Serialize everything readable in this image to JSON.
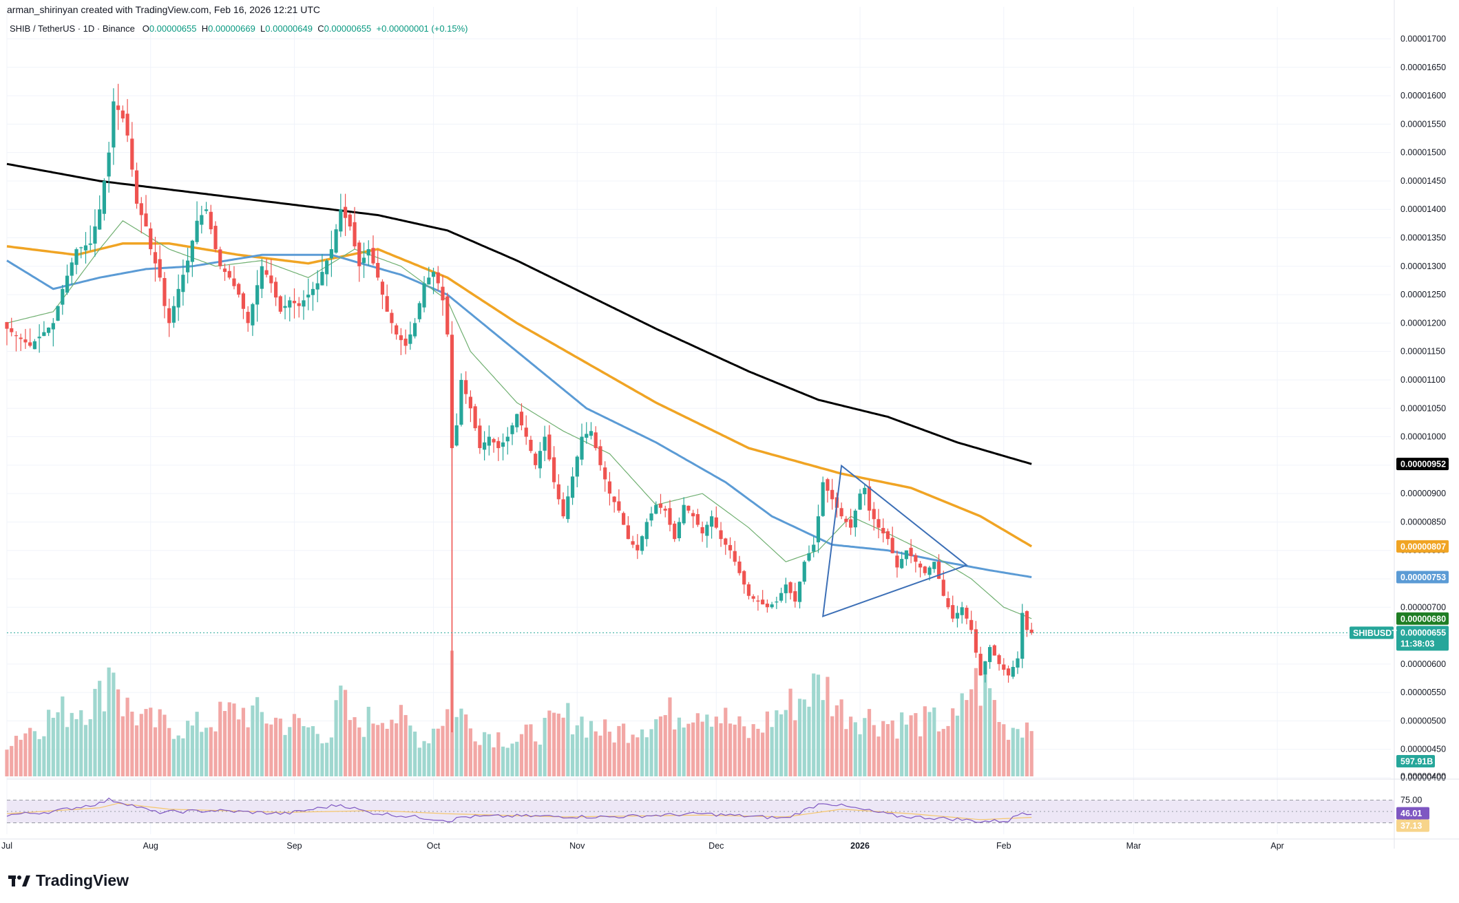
{
  "header": {
    "credit": "arman_shirinyan created with TradingView.com, Feb 16, 2026 12:21 UTC",
    "symbol_line": "SHIB / TetherUS · 1D · Binance",
    "ohlc": {
      "o_label": "O",
      "o": "0.00000655",
      "h_label": "H",
      "h": "0.00000669",
      "l_label": "L",
      "l": "0.00000649",
      "c_label": "C",
      "c": "0.00000655",
      "change": "+0.00000001 (+0.15%)"
    }
  },
  "brand": {
    "name": "TradingView",
    "logo_icon": "tradingview-logo-icon"
  },
  "colors": {
    "up": "#26a69a",
    "down": "#ef5350",
    "vol_up": "#9fd7cf",
    "vol_down": "#f2a7a5",
    "ma200": "#000000",
    "ma100": "#f0a424",
    "ma50": "#5b9bd5",
    "ma20": "#6faf70",
    "triangle": "#3c6fb6",
    "rsi": "#7e57c2",
    "rsi_ma": "#f5c66b",
    "rsi_band": "#ede7f6"
  },
  "chart_data": {
    "type": "candlestick",
    "symbol": "SHIB / TetherUS",
    "interval": "1D",
    "exchange": "Binance",
    "yaxis": {
      "ticks": [
        "0.00001700",
        "0.00001650",
        "0.00001600",
        "0.00001550",
        "0.00001500",
        "0.00001450",
        "0.00001400",
        "0.00001350",
        "0.00001300",
        "0.00001250",
        "0.00001200",
        "0.00001150",
        "0.00001100",
        "0.00001050",
        "0.00001000",
        "0.00000950",
        "0.00000900",
        "0.00000850",
        "0.00000800",
        "0.00000750",
        "0.00000700",
        "0.00000650",
        "0.00000600",
        "0.00000550",
        "0.00000500",
        "0.00000450",
        "0.00000400"
      ],
      "ylim": [
        4e-06,
        1.72e-05
      ],
      "position": "right"
    },
    "xaxis": {
      "labels": [
        {
          "label": "Jul",
          "day": 0
        },
        {
          "label": "Aug",
          "day": 31
        },
        {
          "label": "Sep",
          "day": 62
        },
        {
          "label": "Oct",
          "day": 92
        },
        {
          "label": "Nov",
          "day": 123
        },
        {
          "label": "Dec",
          "day": 153
        },
        {
          "label": "2026",
          "day": 184,
          "bold": true
        },
        {
          "label": "Feb",
          "day": 215
        },
        {
          "label": "Mar",
          "day": 243
        },
        {
          "label": "Apr",
          "day": 274
        }
      ]
    },
    "anchors": {
      "close": [
        [
          0,
          1.19
        ],
        [
          5,
          1.16
        ],
        [
          10,
          1.2
        ],
        [
          12,
          1.26
        ],
        [
          15,
          1.33
        ],
        [
          18,
          1.34
        ],
        [
          20,
          1.4
        ],
        [
          21,
          1.45
        ],
        [
          22,
          1.5
        ],
        [
          23,
          1.59
        ],
        [
          25,
          1.56
        ],
        [
          26,
          1.53
        ],
        [
          28,
          1.41
        ],
        [
          30,
          1.37
        ],
        [
          31,
          1.33
        ],
        [
          33,
          1.28
        ],
        [
          34,
          1.23
        ],
        [
          35,
          1.2
        ],
        [
          37,
          1.26
        ],
        [
          39,
          1.31
        ],
        [
          41,
          1.38
        ],
        [
          43,
          1.4
        ],
        [
          45,
          1.33
        ],
        [
          46,
          1.3
        ],
        [
          48,
          1.28
        ],
        [
          50,
          1.25
        ],
        [
          52,
          1.2
        ],
        [
          55,
          1.3
        ],
        [
          57,
          1.27
        ],
        [
          59,
          1.22
        ],
        [
          61,
          1.24
        ],
        [
          63,
          1.23
        ],
        [
          65,
          1.25
        ],
        [
          67,
          1.27
        ],
        [
          70,
          1.33
        ],
        [
          72,
          1.4
        ],
        [
          74,
          1.37
        ],
        [
          76,
          1.3
        ],
        [
          78,
          1.33
        ],
        [
          80,
          1.28
        ],
        [
          82,
          1.22
        ],
        [
          84,
          1.18
        ],
        [
          86,
          1.16
        ],
        [
          88,
          1.2
        ],
        [
          90,
          1.27
        ],
        [
          92,
          1.29
        ],
        [
          93,
          1.27
        ],
        [
          94,
          1.24
        ],
        [
          95,
          1.18
        ],
        [
          96,
          0.98
        ],
        [
          97,
          1.02
        ],
        [
          98,
          1.1
        ],
        [
          100,
          1.05
        ],
        [
          102,
          0.98
        ],
        [
          104,
          1.0
        ],
        [
          106,
          0.98
        ],
        [
          108,
          1.0
        ],
        [
          110,
          1.04
        ],
        [
          112,
          1.0
        ],
        [
          114,
          0.95
        ],
        [
          116,
          1.0
        ],
        [
          118,
          0.92
        ],
        [
          120,
          0.86
        ],
        [
          122,
          0.93
        ],
        [
          124,
          1.0
        ],
        [
          126,
          1.01
        ],
        [
          128,
          0.95
        ],
        [
          130,
          0.9
        ],
        [
          132,
          0.87
        ],
        [
          134,
          0.82
        ],
        [
          136,
          0.8
        ],
        [
          138,
          0.85
        ],
        [
          140,
          0.88
        ],
        [
          142,
          0.87
        ],
        [
          144,
          0.82
        ],
        [
          146,
          0.88
        ],
        [
          148,
          0.86
        ],
        [
          150,
          0.83
        ],
        [
          152,
          0.86
        ],
        [
          154,
          0.82
        ],
        [
          156,
          0.8
        ],
        [
          158,
          0.76
        ],
        [
          160,
          0.72
        ],
        [
          162,
          0.71
        ],
        [
          164,
          0.7
        ],
        [
          166,
          0.71
        ],
        [
          168,
          0.74
        ],
        [
          170,
          0.71
        ],
        [
          172,
          0.78
        ],
        [
          174,
          0.81
        ],
        [
          175,
          0.86
        ],
        [
          176,
          0.92
        ],
        [
          178,
          0.89
        ],
        [
          180,
          0.86
        ],
        [
          182,
          0.84
        ],
        [
          184,
          0.9
        ],
        [
          185,
          0.91
        ],
        [
          186,
          0.87
        ],
        [
          188,
          0.84
        ],
        [
          190,
          0.82
        ],
        [
          192,
          0.77
        ],
        [
          194,
          0.8
        ],
        [
          196,
          0.78
        ],
        [
          198,
          0.76
        ],
        [
          200,
          0.78
        ],
        [
          202,
          0.72
        ],
        [
          204,
          0.68
        ],
        [
          206,
          0.7
        ],
        [
          208,
          0.66
        ],
        [
          210,
          0.58
        ],
        [
          212,
          0.63
        ],
        [
          214,
          0.6
        ],
        [
          216,
          0.58
        ],
        [
          218,
          0.61
        ],
        [
          219,
          0.69
        ],
        [
          220,
          0.66
        ],
        [
          221,
          0.655
        ]
      ],
      "ma200": [
        [
          0,
          1.48
        ],
        [
          20,
          1.45
        ],
        [
          40,
          1.43
        ],
        [
          60,
          1.41
        ],
        [
          80,
          1.39
        ],
        [
          95,
          1.363
        ],
        [
          110,
          1.31
        ],
        [
          125,
          1.25
        ],
        [
          140,
          1.19
        ],
        [
          160,
          1.115
        ],
        [
          175,
          1.065
        ],
        [
          190,
          1.035
        ],
        [
          205,
          0.99
        ],
        [
          221,
          0.952
        ]
      ],
      "ma100": [
        [
          0,
          1.335
        ],
        [
          15,
          1.32
        ],
        [
          25,
          1.34
        ],
        [
          35,
          1.34
        ],
        [
          50,
          1.32
        ],
        [
          65,
          1.305
        ],
        [
          80,
          1.33
        ],
        [
          95,
          1.28
        ],
        [
          110,
          1.2
        ],
        [
          125,
          1.13
        ],
        [
          140,
          1.06
        ],
        [
          160,
          0.98
        ],
        [
          180,
          0.935
        ],
        [
          195,
          0.91
        ],
        [
          210,
          0.86
        ],
        [
          221,
          0.807
        ]
      ],
      "ma50": [
        [
          0,
          1.31
        ],
        [
          10,
          1.26
        ],
        [
          20,
          1.28
        ],
        [
          30,
          1.295
        ],
        [
          40,
          1.3
        ],
        [
          55,
          1.32
        ],
        [
          70,
          1.32
        ],
        [
          85,
          1.285
        ],
        [
          95,
          1.25
        ],
        [
          110,
          1.15
        ],
        [
          125,
          1.05
        ],
        [
          140,
          0.99
        ],
        [
          155,
          0.92
        ],
        [
          165,
          0.86
        ],
        [
          178,
          0.81
        ],
        [
          190,
          0.8
        ],
        [
          202,
          0.78
        ],
        [
          212,
          0.765
        ],
        [
          221,
          0.753
        ]
      ],
      "ma20": [
        [
          0,
          1.2
        ],
        [
          10,
          1.22
        ],
        [
          20,
          1.33
        ],
        [
          25,
          1.38
        ],
        [
          35,
          1.33
        ],
        [
          45,
          1.3
        ],
        [
          55,
          1.31
        ],
        [
          65,
          1.28
        ],
        [
          75,
          1.33
        ],
        [
          85,
          1.3
        ],
        [
          95,
          1.24
        ],
        [
          100,
          1.15
        ],
        [
          110,
          1.06
        ],
        [
          120,
          1.01
        ],
        [
          130,
          0.97
        ],
        [
          140,
          0.88
        ],
        [
          150,
          0.9
        ],
        [
          160,
          0.84
        ],
        [
          168,
          0.78
        ],
        [
          175,
          0.8
        ],
        [
          182,
          0.86
        ],
        [
          190,
          0.83
        ],
        [
          200,
          0.79
        ],
        [
          208,
          0.75
        ],
        [
          215,
          0.7
        ],
        [
          221,
          0.68
        ]
      ]
    },
    "volume_anchors": [
      [
        0,
        0.3
      ],
      [
        10,
        0.5
      ],
      [
        20,
        0.65
      ],
      [
        23,
        1.0
      ],
      [
        25,
        0.6
      ],
      [
        30,
        0.45
      ],
      [
        40,
        0.4
      ],
      [
        50,
        0.55
      ],
      [
        60,
        0.45
      ],
      [
        70,
        0.35
      ],
      [
        72,
        0.65
      ],
      [
        75,
        0.4
      ],
      [
        82,
        0.55
      ],
      [
        90,
        0.3
      ],
      [
        95,
        0.55
      ],
      [
        96,
        1.0
      ],
      [
        97,
        0.6
      ],
      [
        100,
        0.4
      ],
      [
        110,
        0.3
      ],
      [
        122,
        0.5
      ],
      [
        130,
        0.35
      ],
      [
        150,
        0.6
      ],
      [
        160,
        0.35
      ],
      [
        176,
        0.78
      ],
      [
        180,
        0.55
      ],
      [
        190,
        0.45
      ],
      [
        205,
        0.45
      ],
      [
        208,
        0.78
      ],
      [
        212,
        0.7
      ],
      [
        215,
        0.4
      ],
      [
        221,
        0.45
      ]
    ],
    "rsi_anchors": [
      [
        0,
        0.42
      ],
      [
        10,
        0.5
      ],
      [
        20,
        0.68
      ],
      [
        22,
        0.76
      ],
      [
        25,
        0.7
      ],
      [
        32,
        0.48
      ],
      [
        45,
        0.52
      ],
      [
        60,
        0.45
      ],
      [
        72,
        0.65
      ],
      [
        78,
        0.48
      ],
      [
        96,
        0.3
      ],
      [
        98,
        0.38
      ],
      [
        110,
        0.4
      ],
      [
        130,
        0.38
      ],
      [
        150,
        0.45
      ],
      [
        168,
        0.35
      ],
      [
        176,
        0.7
      ],
      [
        184,
        0.55
      ],
      [
        192,
        0.4
      ],
      [
        205,
        0.33
      ],
      [
        210,
        0.28
      ],
      [
        216,
        0.3
      ],
      [
        219,
        0.48
      ],
      [
        221,
        0.46
      ]
    ],
    "rsi_ma_anchors": [
      [
        0,
        0.45
      ],
      [
        20,
        0.58
      ],
      [
        24,
        0.68
      ],
      [
        35,
        0.55
      ],
      [
        60,
        0.48
      ],
      [
        80,
        0.52
      ],
      [
        95,
        0.45
      ],
      [
        120,
        0.38
      ],
      [
        150,
        0.42
      ],
      [
        168,
        0.38
      ],
      [
        180,
        0.55
      ],
      [
        195,
        0.45
      ],
      [
        210,
        0.32
      ],
      [
        221,
        0.37
      ]
    ],
    "triangle": [
      [
        6.84e-06,
        176
      ],
      [
        7.74e-06,
        207
      ],
      [
        9.49e-06,
        180
      ]
    ],
    "last_price": "0.00000655",
    "countdown": "11:38:03",
    "symbol_tag": "SHIBUSDT",
    "price_tags": [
      {
        "value": "0.00000952",
        "color": "#000000"
      },
      {
        "value": "0.00000807",
        "color": "#f0a424"
      },
      {
        "value": "0.00000753",
        "color": "#5b9bd5"
      },
      {
        "value": "0.00000680",
        "color": "#1e7d23"
      }
    ],
    "volume_tag": "597.91B",
    "volume_axis_label": "0.00000400",
    "rsi": {
      "levels": [
        "75.00",
        "50.00",
        "25.00"
      ],
      "value": "46.01",
      "ma_value": "37.13"
    }
  }
}
